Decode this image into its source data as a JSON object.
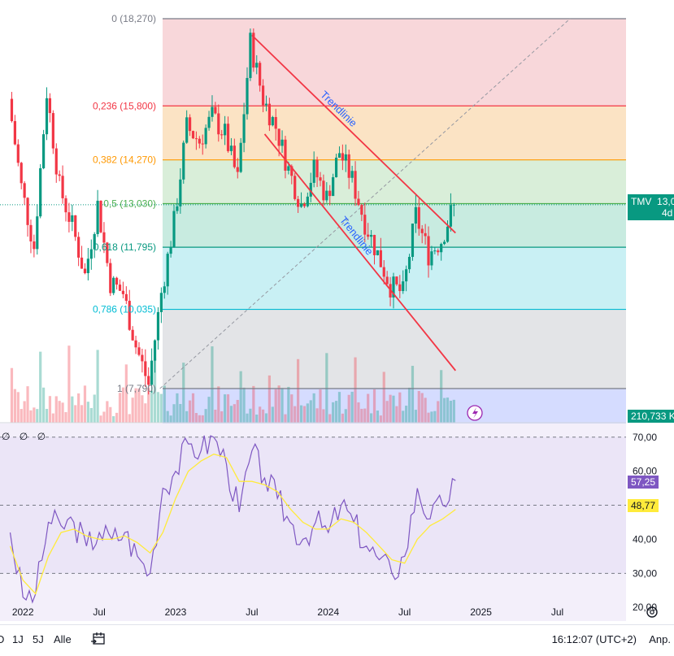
{
  "symbol": "TMV",
  "price_tag": {
    "price": "13,000",
    "countdown": "4d 2h",
    "color": "#089981"
  },
  "volume_tag": {
    "value": "210,733 K",
    "color": "#089981"
  },
  "rsi_tags": {
    "rsi": "57,25",
    "rsi_color": "#7e57c2",
    "ma": "48,77",
    "ma_color": "#ffeb3b"
  },
  "rsi_tools": "∅ ∅ ∅",
  "time_axis": [
    "2022",
    "Jul",
    "2023",
    "Jul",
    "2024",
    "Jul",
    "2025",
    "Jul"
  ],
  "bottom_bar": {
    "ranges": [
      "1J",
      "5J",
      "Alle"
    ],
    "partial_range": "D",
    "clock": "16:12:07 (UTC+2)",
    "adjust": "Anp."
  },
  "annotations": {
    "trend_upper": "Trendlinie",
    "trend_lower": "Trendlinie"
  },
  "icons": {
    "settings": "gear-icon",
    "calendar": "calendar-range-icon",
    "flash": "lightning-icon"
  },
  "chart_data": [
    {
      "type": "candlestick",
      "panel": "price",
      "ylim": [
        6800,
        18800
      ],
      "y_ticks": [
        "7,000",
        "8,000",
        "9,000",
        "10,000",
        "11,000",
        "12,000",
        "13,000",
        "14,000",
        "15,000",
        "16,000",
        "17,000",
        "18,000"
      ],
      "x_ticks": [
        "2022",
        "Jul",
        "2023",
        "Jul",
        "2024",
        "Jul",
        "2025",
        "Jul"
      ],
      "fibonacci": [
        {
          "level": "0",
          "value": 18270,
          "label": "0 (18,270)",
          "color": "#787b86",
          "fill": "#f8d7da"
        },
        {
          "level": "0.236",
          "value": 15800,
          "label": "0,236 (15,800)",
          "color": "#f23645",
          "fill": "#fbe3c4"
        },
        {
          "level": "0.382",
          "value": 14270,
          "label": "0,382 (14,270)",
          "color": "#ff9800",
          "fill": "#d9eed9"
        },
        {
          "level": "0.5",
          "value": 13030,
          "label": "0,5 (13,030)",
          "color": "#4caf50",
          "fill": "#c8ebe0"
        },
        {
          "level": "0.618",
          "value": 11795,
          "label": "0,618 (11,795)",
          "color": "#089981",
          "fill": "#c9f0f4"
        },
        {
          "level": "0.786",
          "value": 10035,
          "label": "0,786 (10,035)",
          "color": "#00bcd4",
          "fill": "#e3e4e7"
        },
        {
          "level": "1",
          "value": 7790,
          "label": "1 (7,790)",
          "color": "#787b86",
          "fill": "#d5dcff"
        }
      ],
      "trendlines": [
        {
          "name": "Trendlinie",
          "from": [
            "2023-07",
            17800
          ],
          "to": [
            "2024-11",
            12200
          ],
          "color": "#f23645"
        },
        {
          "name": "Trendlinie",
          "from": [
            "2023-08",
            15000
          ],
          "to": [
            "2024-11",
            8300
          ],
          "color": "#f23645"
        }
      ],
      "fib_diagonal": {
        "from": [
          "2022-11",
          7790
        ],
        "to": [
          "2025-08",
          18270
        ],
        "style": "dashed"
      },
      "last_price": 13000,
      "series": [
        {
          "name": "TMV",
          "approx_closes": [
            {
              "x": "2021-12",
              "y": 16000
            },
            {
              "x": "2022-01",
              "y": 13500
            },
            {
              "x": "2022-02",
              "y": 11800
            },
            {
              "x": "2022-03",
              "y": 16200
            },
            {
              "x": "2022-04",
              "y": 13500
            },
            {
              "x": "2022-05",
              "y": 12400
            },
            {
              "x": "2022-06",
              "y": 11000
            },
            {
              "x": "2022-07",
              "y": 13000
            },
            {
              "x": "2022-08",
              "y": 10800
            },
            {
              "x": "2022-09",
              "y": 10500
            },
            {
              "x": "2022-10",
              "y": 9000
            },
            {
              "x": "2022-11",
              "y": 7900
            },
            {
              "x": "2022-12",
              "y": 10500
            },
            {
              "x": "2023-01",
              "y": 12500
            },
            {
              "x": "2023-02",
              "y": 15200
            },
            {
              "x": "2023-03",
              "y": 14800
            },
            {
              "x": "2023-04",
              "y": 15500
            },
            {
              "x": "2023-05",
              "y": 15000
            },
            {
              "x": "2023-06",
              "y": 13700
            },
            {
              "x": "2023-07",
              "y": 17600
            },
            {
              "x": "2023-08",
              "y": 16000
            },
            {
              "x": "2023-09",
              "y": 15200
            },
            {
              "x": "2023-10",
              "y": 14000
            },
            {
              "x": "2023-11",
              "y": 13000
            },
            {
              "x": "2023-12",
              "y": 14000
            },
            {
              "x": "2024-01",
              "y": 13200
            },
            {
              "x": "2024-02",
              "y": 14500
            },
            {
              "x": "2024-03",
              "y": 13700
            },
            {
              "x": "2024-04",
              "y": 12500
            },
            {
              "x": "2024-05",
              "y": 11600
            },
            {
              "x": "2024-06",
              "y": 10700
            },
            {
              "x": "2024-07",
              "y": 10500
            },
            {
              "x": "2024-08",
              "y": 12700
            },
            {
              "x": "2024-09",
              "y": 11600
            },
            {
              "x": "2024-10",
              "y": 12000
            },
            {
              "x": "2024-11",
              "y": 13000
            }
          ]
        }
      ]
    },
    {
      "type": "line",
      "panel": "rsi",
      "ylim": [
        16,
        74
      ],
      "y_ticks": [
        "20,00",
        "30,00",
        "40,00",
        "50,00",
        "60,00",
        "70,00"
      ],
      "bands": {
        "upper": 70,
        "middle": 50,
        "lower": 30
      },
      "series": [
        {
          "name": "RSI",
          "color": "#7e57c2",
          "values": [
            {
              "x": "2021-12",
              "y": 42
            },
            {
              "x": "2022-01",
              "y": 23
            },
            {
              "x": "2022-02",
              "y": 24
            },
            {
              "x": "2022-03",
              "y": 45
            },
            {
              "x": "2022-04",
              "y": 44
            },
            {
              "x": "2022-05",
              "y": 45
            },
            {
              "x": "2022-06",
              "y": 38
            },
            {
              "x": "2022-07",
              "y": 42
            },
            {
              "x": "2022-08",
              "y": 40
            },
            {
              "x": "2022-09",
              "y": 42
            },
            {
              "x": "2022-10",
              "y": 35
            },
            {
              "x": "2022-11",
              "y": 30
            },
            {
              "x": "2022-12",
              "y": 55
            },
            {
              "x": "2023-01",
              "y": 60
            },
            {
              "x": "2023-02",
              "y": 68
            },
            {
              "x": "2023-03",
              "y": 66
            },
            {
              "x": "2023-04",
              "y": 70
            },
            {
              "x": "2023-05",
              "y": 62
            },
            {
              "x": "2023-06",
              "y": 48
            },
            {
              "x": "2023-07",
              "y": 66
            },
            {
              "x": "2023-08",
              "y": 58
            },
            {
              "x": "2023-09",
              "y": 52
            },
            {
              "x": "2023-10",
              "y": 45
            },
            {
              "x": "2023-11",
              "y": 40
            },
            {
              "x": "2023-12",
              "y": 45
            },
            {
              "x": "2024-01",
              "y": 42
            },
            {
              "x": "2024-02",
              "y": 50
            },
            {
              "x": "2024-03",
              "y": 45
            },
            {
              "x": "2024-04",
              "y": 38
            },
            {
              "x": "2024-05",
              "y": 34
            },
            {
              "x": "2024-06",
              "y": 30
            },
            {
              "x": "2024-07",
              "y": 35
            },
            {
              "x": "2024-08",
              "y": 55
            },
            {
              "x": "2024-09",
              "y": 46
            },
            {
              "x": "2024-10",
              "y": 50
            },
            {
              "x": "2024-11",
              "y": 57.25
            }
          ]
        },
        {
          "name": "RSI MA",
          "color": "#ffeb3b",
          "values": [
            {
              "x": "2021-12",
              "y": 38
            },
            {
              "x": "2022-01",
              "y": 28
            },
            {
              "x": "2022-02",
              "y": 24
            },
            {
              "x": "2022-03",
              "y": 35
            },
            {
              "x": "2022-04",
              "y": 42
            },
            {
              "x": "2022-05",
              "y": 43
            },
            {
              "x": "2022-06",
              "y": 41
            },
            {
              "x": "2022-07",
              "y": 40
            },
            {
              "x": "2022-08",
              "y": 40
            },
            {
              "x": "2022-09",
              "y": 41
            },
            {
              "x": "2022-10",
              "y": 39
            },
            {
              "x": "2022-11",
              "y": 36
            },
            {
              "x": "2022-12",
              "y": 42
            },
            {
              "x": "2023-01",
              "y": 52
            },
            {
              "x": "2023-02",
              "y": 60
            },
            {
              "x": "2023-03",
              "y": 63
            },
            {
              "x": "2023-04",
              "y": 65
            },
            {
              "x": "2023-05",
              "y": 64
            },
            {
              "x": "2023-06",
              "y": 57
            },
            {
              "x": "2023-07",
              "y": 57
            },
            {
              "x": "2023-08",
              "y": 56
            },
            {
              "x": "2023-09",
              "y": 54
            },
            {
              "x": "2023-10",
              "y": 49
            },
            {
              "x": "2023-11",
              "y": 45
            },
            {
              "x": "2023-12",
              "y": 43
            },
            {
              "x": "2024-01",
              "y": 43
            },
            {
              "x": "2024-02",
              "y": 46
            },
            {
              "x": "2024-03",
              "y": 45
            },
            {
              "x": "2024-04",
              "y": 42
            },
            {
              "x": "2024-05",
              "y": 38
            },
            {
              "x": "2024-06",
              "y": 34
            },
            {
              "x": "2024-07",
              "y": 33
            },
            {
              "x": "2024-08",
              "y": 40
            },
            {
              "x": "2024-09",
              "y": 44
            },
            {
              "x": "2024-10",
              "y": 46
            },
            {
              "x": "2024-11",
              "y": 48.77
            }
          ]
        }
      ]
    }
  ]
}
